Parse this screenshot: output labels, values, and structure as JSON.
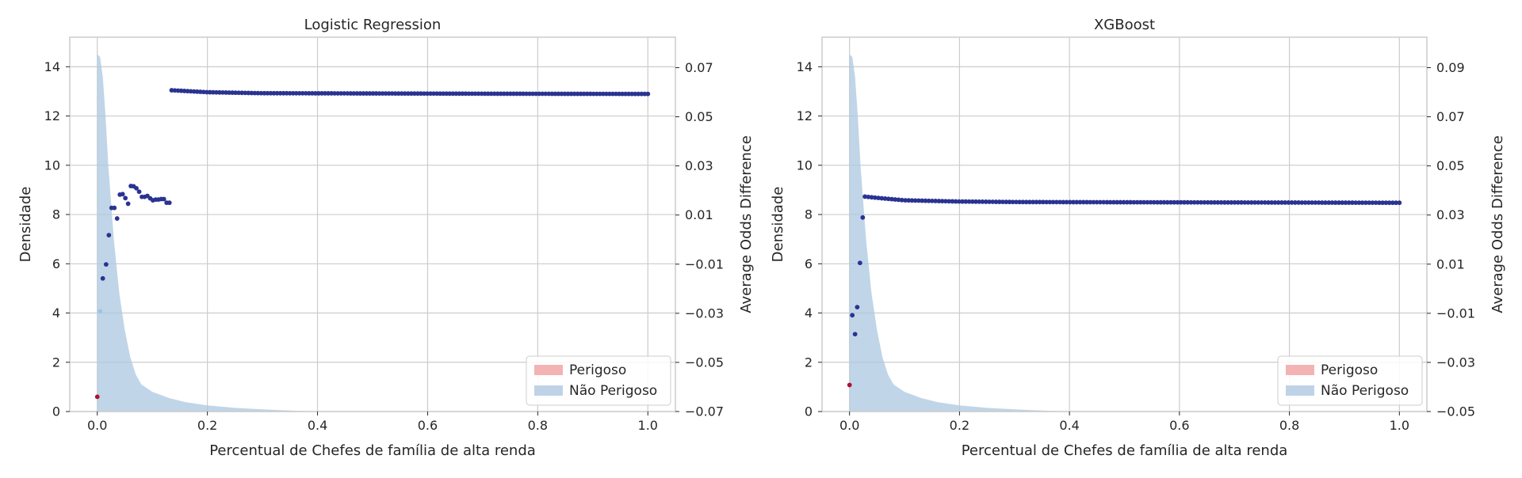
{
  "colors": {
    "kde_fill": "#aec9e2",
    "points": "#2a3391",
    "point_red": "#b01030",
    "point_light": "#9ec3e6",
    "legend_perigoso": "#f3b3b3",
    "legend_nao_perigoso": "#bfd3e6",
    "grid": "#cccccc",
    "spine": "#cccccc"
  },
  "chart_data": [
    {
      "type": "scatter",
      "title": "Logistic Regression",
      "xlabel": "Percentual de Chefes de família de alta renda",
      "ylabel": "Densidade",
      "y2label": "Average Odds Difference",
      "xlim": [
        -0.05,
        1.05
      ],
      "ylim": [
        0,
        15.2
      ],
      "y2lim": [
        -0.07,
        0.0824
      ],
      "xticks": [
        "0.0",
        "0.2",
        "0.4",
        "0.6",
        "0.8",
        "1.0"
      ],
      "yticks": [
        "0",
        "2",
        "4",
        "6",
        "8",
        "10",
        "12",
        "14"
      ],
      "y2ticks": [
        "−0.07",
        "−0.05",
        "−0.03",
        "−0.01",
        "0.01",
        "0.03",
        "0.05",
        "0.07"
      ],
      "grid": true,
      "legend": {
        "placement": "lower-right",
        "entries": [
          "Perigoso",
          "Não Perigoso"
        ]
      },
      "density": {
        "name": "Não Perigoso",
        "x": [
          0.0,
          0.005,
          0.01,
          0.015,
          0.02,
          0.03,
          0.04,
          0.05,
          0.06,
          0.07,
          0.08,
          0.1,
          0.13,
          0.16,
          0.2,
          0.25,
          0.3,
          0.35,
          0.4
        ],
        "y": [
          14.5,
          14.4,
          13.6,
          12.0,
          10.0,
          7.0,
          4.8,
          3.3,
          2.2,
          1.5,
          1.1,
          0.8,
          0.55,
          0.38,
          0.25,
          0.15,
          0.09,
          0.04,
          0.0
        ]
      },
      "points_red": {
        "x": [
          0.0
        ],
        "y": [
          -0.064
        ]
      },
      "points_light": {
        "x": [
          0.005
        ],
        "y": [
          -0.0292
        ]
      },
      "points_main": {
        "x": [
          0.01,
          0.016,
          0.021,
          0.026,
          0.031,
          0.036,
          0.041,
          0.046,
          0.051,
          0.056,
          0.061,
          0.066,
          0.071,
          0.076,
          0.081,
          0.086,
          0.091,
          0.096,
          0.101,
          0.106,
          0.111,
          0.116,
          0.121,
          0.126,
          0.131
        ],
        "y": [
          -0.0158,
          -0.0101,
          0.0018,
          0.0129,
          0.0129,
          0.0086,
          0.0183,
          0.0185,
          0.0169,
          0.0146,
          0.0218,
          0.0217,
          0.0209,
          0.0195,
          0.0174,
          0.0174,
          0.0178,
          0.0168,
          0.016,
          0.0163,
          0.0163,
          0.0165,
          0.0165,
          0.015,
          0.015
        ]
      },
      "line_points": {
        "x_start": 0.135,
        "x_end": 1.0,
        "count": 150,
        "profile_x": [
          0.135,
          0.2,
          0.3,
          0.5,
          0.7,
          1.0
        ],
        "profile_y": [
          0.0608,
          0.06,
          0.0596,
          0.0595,
          0.0594,
          0.0593
        ]
      }
    },
    {
      "type": "scatter",
      "title": "XGBoost",
      "xlabel": "Percentual de Chefes de família de alta renda",
      "ylabel": "Densidade",
      "y2label": "Average Odds Difference",
      "xlim": [
        -0.05,
        1.05
      ],
      "ylim": [
        0,
        15.2
      ],
      "y2lim": [
        -0.05,
        0.1024
      ],
      "xticks": [
        "0.0",
        "0.2",
        "0.4",
        "0.6",
        "0.8",
        "1.0"
      ],
      "yticks": [
        "0",
        "2",
        "4",
        "6",
        "8",
        "10",
        "12",
        "14"
      ],
      "y2ticks": [
        "−0.05",
        "−0.03",
        "−0.01",
        "0.01",
        "0.03",
        "0.05",
        "0.07",
        "0.09"
      ],
      "grid": true,
      "legend": {
        "placement": "lower-right",
        "entries": [
          "Perigoso",
          "Não Perigoso"
        ]
      },
      "density": {
        "name": "Não Perigoso",
        "x": [
          0.0,
          0.005,
          0.01,
          0.015,
          0.02,
          0.03,
          0.04,
          0.05,
          0.06,
          0.07,
          0.08,
          0.1,
          0.13,
          0.16,
          0.2,
          0.25,
          0.3,
          0.35,
          0.4
        ],
        "y": [
          14.5,
          14.4,
          13.6,
          12.0,
          10.0,
          7.0,
          4.8,
          3.3,
          2.2,
          1.5,
          1.1,
          0.8,
          0.55,
          0.38,
          0.25,
          0.15,
          0.09,
          0.04,
          0.0
        ]
      },
      "points_red": {
        "x": [
          0.0
        ],
        "y": [
          -0.0392
        ]
      },
      "points_light": {
        "x": [],
        "y": []
      },
      "points_main": {
        "x": [
          0.005,
          0.01,
          0.014,
          0.019,
          0.024
        ],
        "y": [
          -0.0108,
          -0.0185,
          -0.0075,
          0.0105,
          0.029
        ]
      },
      "line_points": {
        "x_start": 0.028,
        "x_end": 1.0,
        "count": 160,
        "profile_x": [
          0.028,
          0.05,
          0.1,
          0.2,
          0.3,
          0.5,
          1.0
        ],
        "profile_y": [
          0.0375,
          0.037,
          0.036,
          0.0355,
          0.0353,
          0.0352,
          0.035
        ]
      }
    }
  ]
}
